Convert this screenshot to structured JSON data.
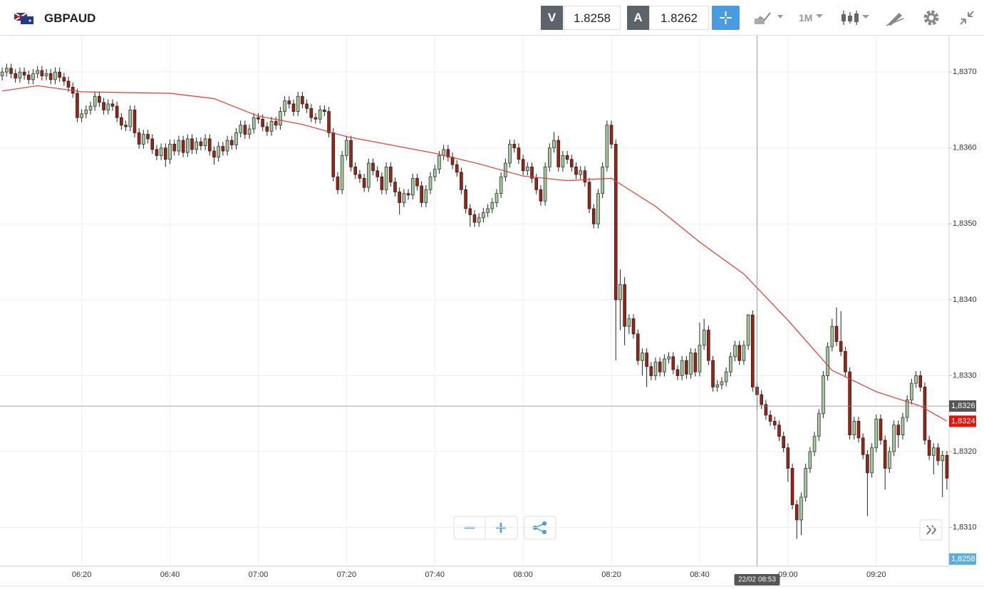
{
  "header": {
    "symbol": "GBPAUD",
    "bid_label": "V",
    "bid": "1.8258",
    "ask_label": "A",
    "ask": "1.8262",
    "timeframe": "1M"
  },
  "chart_data": {
    "type": "candlestick",
    "x": [
      "06:02",
      "06:03",
      "06:04",
      "06:05",
      "06:06",
      "06:07",
      "06:08",
      "06:09",
      "06:10",
      "06:11",
      "06:12",
      "06:13",
      "06:14",
      "06:15",
      "06:16",
      "06:17",
      "06:18",
      "06:19",
      "06:20",
      "06:21",
      "06:22",
      "06:23",
      "06:24",
      "06:25",
      "06:26",
      "06:27",
      "06:28",
      "06:29",
      "06:30",
      "06:31",
      "06:32",
      "06:33",
      "06:34",
      "06:35",
      "06:36",
      "06:37",
      "06:38",
      "06:39",
      "06:40",
      "06:41",
      "06:42",
      "06:43",
      "06:44",
      "06:45",
      "06:46",
      "06:47",
      "06:48",
      "06:49",
      "06:50",
      "06:51",
      "06:52",
      "06:53",
      "06:54",
      "06:55",
      "06:56",
      "06:57",
      "06:58",
      "06:59",
      "07:00",
      "07:01",
      "07:02",
      "07:03",
      "07:04",
      "07:05",
      "07:06",
      "07:07",
      "07:08",
      "07:09",
      "07:10",
      "07:11",
      "07:12",
      "07:13",
      "07:14",
      "07:15",
      "07:16",
      "07:17",
      "07:18",
      "07:19",
      "07:20",
      "07:21",
      "07:22",
      "07:23",
      "07:24",
      "07:25",
      "07:26",
      "07:27",
      "07:28",
      "07:29",
      "07:30",
      "07:31",
      "07:32",
      "07:33",
      "07:34",
      "07:35",
      "07:36",
      "07:37",
      "07:38",
      "07:39",
      "07:40",
      "07:41",
      "07:42",
      "07:43",
      "07:44",
      "07:45",
      "07:46",
      "07:47",
      "07:48",
      "07:49",
      "07:50",
      "07:51",
      "07:52",
      "07:53",
      "07:54",
      "07:55",
      "07:56",
      "07:57",
      "07:58",
      "07:59",
      "08:00",
      "08:01",
      "08:02",
      "08:03",
      "08:04",
      "08:05",
      "08:06",
      "08:07",
      "08:08",
      "08:09",
      "08:10",
      "08:11",
      "08:12",
      "08:13",
      "08:14",
      "08:15",
      "08:16",
      "08:17",
      "08:18",
      "08:19",
      "08:20",
      "08:21",
      "08:22",
      "08:23",
      "08:24",
      "08:25",
      "08:26",
      "08:27",
      "08:28",
      "08:29",
      "08:30",
      "08:31",
      "08:32",
      "08:33",
      "08:34",
      "08:35",
      "08:36",
      "08:37",
      "08:38",
      "08:39",
      "08:40",
      "08:41",
      "08:42",
      "08:43",
      "08:44",
      "08:45",
      "08:46",
      "08:47",
      "08:48",
      "08:49",
      "08:50",
      "08:51",
      "08:52",
      "08:53",
      "08:54",
      "08:55",
      "08:56",
      "08:57",
      "08:58",
      "08:59",
      "09:00",
      "09:01",
      "09:02",
      "09:03",
      "09:04",
      "09:05",
      "09:06",
      "09:07",
      "09:08",
      "09:09",
      "09:10",
      "09:11",
      "09:12",
      "09:13",
      "09:14",
      "09:15",
      "09:16",
      "09:17",
      "09:18",
      "09:19",
      "09:20",
      "09:21",
      "09:22",
      "09:23",
      "09:24",
      "09:25",
      "09:26",
      "09:27",
      "09:28",
      "09:29",
      "09:30",
      "09:31",
      "09:32",
      "09:33",
      "09:34",
      "09:35",
      "09:36"
    ],
    "open": [
      1.83695,
      1.837,
      1.83705,
      1.83698,
      1.83692,
      1.837,
      1.83696,
      1.8369,
      1.83698,
      1.83702,
      1.83695,
      1.83698,
      1.8369,
      1.837,
      1.83693,
      1.83688,
      1.8368,
      1.83672,
      1.8364,
      1.83645,
      1.8365,
      1.83655,
      1.83668,
      1.8366,
      1.8365,
      1.83658,
      1.83655,
      1.8364,
      1.8363,
      1.83628,
      1.8365,
      1.8362,
      1.83605,
      1.83618,
      1.83612,
      1.83598,
      1.8359,
      1.836,
      1.83585,
      1.83605,
      1.83596,
      1.8361,
      1.83594,
      1.83612,
      1.83598,
      1.83608,
      1.83603,
      1.83612,
      1.83596,
      1.83588,
      1.83602,
      1.83596,
      1.8361,
      1.83604,
      1.8362,
      1.8363,
      1.83618,
      1.83625,
      1.8364,
      1.83638,
      1.83628,
      1.83622,
      1.83635,
      1.8363,
      1.83648,
      1.83662,
      1.83658,
      1.83648,
      1.83668,
      1.83658,
      1.83652,
      1.8364,
      1.83638,
      1.8365,
      1.83648,
      1.8362,
      1.83562,
      1.83545,
      1.8359,
      1.8361,
      1.83575,
      1.83565,
      1.8356,
      1.83548,
      1.8358,
      1.8357,
      1.83562,
      1.83545,
      1.83575,
      1.83555,
      1.83542,
      1.83528,
      1.8354,
      1.83538,
      1.8356,
      1.8355,
      1.83528,
      1.83545,
      1.83562,
      1.83572,
      1.8359,
      1.83598,
      1.83588,
      1.83578,
      1.83568,
      1.83545,
      1.8352,
      1.83512,
      1.83502,
      1.83508,
      1.83515,
      1.8352,
      1.83528,
      1.8354,
      1.83562,
      1.8358,
      1.83605,
      1.836,
      1.83585,
      1.8357,
      1.83575,
      1.8356,
      1.83545,
      1.8353,
      1.83575,
      1.836,
      1.8361,
      1.83575,
      1.8359,
      1.83585,
      1.83575,
      1.83565,
      1.8357,
      1.83555,
      1.8352,
      1.835,
      1.8354,
      1.83575,
      1.8363,
      1.83605,
      1.834,
      1.8342,
      1.83365,
      1.83375,
      1.83355,
      1.8332,
      1.8333,
      1.83312,
      1.833,
      1.83318,
      1.83305,
      1.83322,
      1.83325,
      1.83308,
      1.833,
      1.8332,
      1.83302,
      1.8333,
      1.83305,
      1.8334,
      1.8336,
      1.8332,
      1.83285,
      1.83288,
      1.83292,
      1.83305,
      1.83325,
      1.8334,
      1.8332,
      1.8334,
      1.8338,
      1.83285,
      1.83275,
      1.83262,
      1.83248,
      1.8324,
      1.83235,
      1.8322,
      1.83205,
      1.83178,
      1.8313,
      1.8311,
      1.8314,
      1.83178,
      1.832,
      1.8322,
      1.8325,
      1.833,
      1.83338,
      1.83365,
      1.83345,
      1.83332,
      1.83305,
      1.83222,
      1.8324,
      1.83218,
      1.83196,
      1.83172,
      1.83205,
      1.83243,
      1.83215,
      1.83178,
      1.832,
      1.83235,
      1.83222,
      1.83245,
      1.83268,
      1.8329,
      1.833,
      1.83285,
      1.83215,
      1.83195,
      1.83205,
      1.83188,
      1.83195
    ],
    "high": [
      1.83706,
      1.83711,
      1.83711,
      1.83704,
      1.83706,
      1.83706,
      1.83702,
      1.83704,
      1.83708,
      1.83708,
      1.83704,
      1.83704,
      1.83706,
      1.83706,
      1.83699,
      1.83694,
      1.83686,
      1.83678,
      1.83651,
      1.83656,
      1.83661,
      1.83674,
      1.83674,
      1.83666,
      1.83664,
      1.83664,
      1.83661,
      1.83646,
      1.83636,
      1.83656,
      1.83656,
      1.83626,
      1.83624,
      1.83624,
      1.83618,
      1.83604,
      1.83606,
      1.83606,
      1.83611,
      1.83611,
      1.83616,
      1.83616,
      1.83618,
      1.83618,
      1.83614,
      1.83614,
      1.83618,
      1.83618,
      1.83602,
      1.83608,
      1.83608,
      1.83616,
      1.83616,
      1.83626,
      1.83636,
      1.83636,
      1.83631,
      1.83646,
      1.83646,
      1.83644,
      1.83634,
      1.83641,
      1.83641,
      1.83654,
      1.83668,
      1.83668,
      1.83664,
      1.83674,
      1.83674,
      1.83664,
      1.83658,
      1.83646,
      1.83656,
      1.83656,
      1.83654,
      1.83626,
      1.83568,
      1.83596,
      1.83616,
      1.83616,
      1.83581,
      1.83571,
      1.83566,
      1.83586,
      1.83586,
      1.83576,
      1.83568,
      1.83581,
      1.83581,
      1.83561,
      1.83548,
      1.83546,
      1.83546,
      1.83566,
      1.83566,
      1.83556,
      1.83551,
      1.83568,
      1.83578,
      1.83596,
      1.83604,
      1.83604,
      1.83594,
      1.83584,
      1.83574,
      1.83551,
      1.83526,
      1.83518,
      1.83514,
      1.83521,
      1.83526,
      1.83534,
      1.83546,
      1.83568,
      1.83586,
      1.83611,
      1.83611,
      1.83606,
      1.83591,
      1.83581,
      1.83581,
      1.83566,
      1.83551,
      1.83581,
      1.83606,
      1.83621,
      1.83616,
      1.83596,
      1.83596,
      1.83591,
      1.83581,
      1.83576,
      1.83576,
      1.83561,
      1.83526,
      1.83546,
      1.83581,
      1.83636,
      1.83636,
      1.83611,
      1.8344,
      1.8343,
      1.83381,
      1.83381,
      1.83361,
      1.83336,
      1.83336,
      1.83318,
      1.83324,
      1.83324,
      1.83328,
      1.83331,
      1.83331,
      1.83314,
      1.83326,
      1.83326,
      1.83336,
      1.83336,
      1.8337,
      1.83375,
      1.83366,
      1.83326,
      1.83294,
      1.83298,
      1.83311,
      1.83331,
      1.83346,
      1.83346,
      1.83346,
      1.83381,
      1.83386,
      1.83291,
      1.83281,
      1.83268,
      1.83254,
      1.83246,
      1.83241,
      1.83226,
      1.83211,
      1.83184,
      1.83136,
      1.83146,
      1.83184,
      1.83206,
      1.83226,
      1.83256,
      1.83306,
      1.83344,
      1.83375,
      1.8339,
      1.83385,
      1.83338,
      1.83311,
      1.83246,
      1.83246,
      1.83224,
      1.83202,
      1.83211,
      1.83249,
      1.83249,
      1.83221,
      1.83206,
      1.83241,
      1.83241,
      1.83251,
      1.83274,
      1.83296,
      1.83306,
      1.83306,
      1.83291,
      1.83221,
      1.83211,
      1.83211,
      1.83201,
      1.83201
    ],
    "low": [
      1.83689,
      1.83694,
      1.83692,
      1.83686,
      1.83686,
      1.8369,
      1.83684,
      1.83684,
      1.83692,
      1.83689,
      1.83689,
      1.83684,
      1.83684,
      1.83687,
      1.83682,
      1.83674,
      1.83666,
      1.83634,
      1.83634,
      1.83639,
      1.83644,
      1.83649,
      1.83654,
      1.83644,
      1.83644,
      1.83649,
      1.83634,
      1.83624,
      1.83622,
      1.83622,
      1.83614,
      1.83599,
      1.83599,
      1.83606,
      1.83592,
      1.83584,
      1.83584,
      1.83575,
      1.83579,
      1.8359,
      1.8359,
      1.83588,
      1.83588,
      1.83592,
      1.83592,
      1.83597,
      1.83597,
      1.8359,
      1.83578,
      1.83582,
      1.8359,
      1.8359,
      1.83598,
      1.83598,
      1.83614,
      1.83612,
      1.83612,
      1.83619,
      1.83632,
      1.83622,
      1.83616,
      1.83616,
      1.83624,
      1.83624,
      1.83642,
      1.83652,
      1.83642,
      1.83642,
      1.83652,
      1.83646,
      1.83634,
      1.83632,
      1.83632,
      1.83642,
      1.83614,
      1.83556,
      1.83539,
      1.83539,
      1.83584,
      1.83569,
      1.83559,
      1.83554,
      1.83542,
      1.83542,
      1.83564,
      1.83556,
      1.83539,
      1.83539,
      1.83549,
      1.83536,
      1.83512,
      1.83522,
      1.83532,
      1.83532,
      1.83544,
      1.83522,
      1.83522,
      1.83539,
      1.83556,
      1.83566,
      1.83584,
      1.83582,
      1.83572,
      1.83562,
      1.83539,
      1.83514,
      1.83496,
      1.83496,
      1.83496,
      1.83502,
      1.83509,
      1.83514,
      1.83522,
      1.83534,
      1.83556,
      1.83574,
      1.83594,
      1.83579,
      1.83564,
      1.83564,
      1.83554,
      1.83539,
      1.83524,
      1.83524,
      1.83569,
      1.83594,
      1.83569,
      1.83569,
      1.83579,
      1.83569,
      1.83559,
      1.83559,
      1.83549,
      1.83514,
      1.83494,
      1.83494,
      1.83534,
      1.83569,
      1.83599,
      1.8332,
      1.8336,
      1.8334,
      1.83355,
      1.83349,
      1.83314,
      1.833,
      1.83285,
      1.83294,
      1.83294,
      1.83299,
      1.83299,
      1.83316,
      1.83302,
      1.83294,
      1.83294,
      1.83296,
      1.83296,
      1.83299,
      1.83299,
      1.83334,
      1.83314,
      1.83279,
      1.83279,
      1.83282,
      1.83286,
      1.83299,
      1.83319,
      1.83314,
      1.83314,
      1.83334,
      1.83279,
      1.83255,
      1.83256,
      1.83242,
      1.83234,
      1.83229,
      1.83214,
      1.83199,
      1.8316,
      1.83124,
      1.83085,
      1.8309,
      1.83134,
      1.83172,
      1.83194,
      1.83214,
      1.83244,
      1.83294,
      1.83332,
      1.83339,
      1.83326,
      1.83299,
      1.83216,
      1.83216,
      1.83212,
      1.8319,
      1.83115,
      1.83166,
      1.83199,
      1.83209,
      1.8315,
      1.83172,
      1.83194,
      1.83205,
      1.83216,
      1.83239,
      1.83262,
      1.83284,
      1.83279,
      1.83209,
      1.83189,
      1.8317,
      1.83182,
      1.8314,
      1.8315
    ],
    "close": [
      1.837,
      1.83705,
      1.83698,
      1.83692,
      1.837,
      1.83696,
      1.8369,
      1.83698,
      1.83702,
      1.83695,
      1.83698,
      1.8369,
      1.837,
      1.83693,
      1.83688,
      1.8368,
      1.83672,
      1.8364,
      1.83645,
      1.8365,
      1.83655,
      1.83668,
      1.8366,
      1.8365,
      1.83658,
      1.83655,
      1.8364,
      1.8363,
      1.83628,
      1.8365,
      1.8362,
      1.83605,
      1.83618,
      1.83612,
      1.83598,
      1.8359,
      1.836,
      1.83585,
      1.83605,
      1.83596,
      1.8361,
      1.83594,
      1.83612,
      1.83598,
      1.83608,
      1.83603,
      1.83612,
      1.83596,
      1.83588,
      1.83602,
      1.83596,
      1.8361,
      1.83604,
      1.8362,
      1.8363,
      1.83618,
      1.83625,
      1.8364,
      1.83638,
      1.83628,
      1.83622,
      1.83635,
      1.8363,
      1.83648,
      1.83662,
      1.83658,
      1.83648,
      1.83668,
      1.83658,
      1.83652,
      1.8364,
      1.83638,
      1.8365,
      1.83648,
      1.8362,
      1.83562,
      1.83545,
      1.8359,
      1.8361,
      1.83575,
      1.83565,
      1.8356,
      1.83548,
      1.8358,
      1.8357,
      1.83562,
      1.83545,
      1.83575,
      1.83555,
      1.83542,
      1.83528,
      1.8354,
      1.83538,
      1.8356,
      1.8355,
      1.83528,
      1.83545,
      1.83562,
      1.83572,
      1.8359,
      1.83598,
      1.83588,
      1.83578,
      1.83568,
      1.83545,
      1.8352,
      1.83512,
      1.83502,
      1.83508,
      1.83515,
      1.8352,
      1.83528,
      1.8354,
      1.83562,
      1.8358,
      1.83605,
      1.836,
      1.83585,
      1.8357,
      1.83575,
      1.8356,
      1.83545,
      1.8353,
      1.83575,
      1.836,
      1.8361,
      1.83575,
      1.8359,
      1.83585,
      1.83575,
      1.83565,
      1.8357,
      1.83555,
      1.8352,
      1.835,
      1.8354,
      1.83575,
      1.8363,
      1.83605,
      1.834,
      1.8342,
      1.83365,
      1.83375,
      1.83355,
      1.8332,
      1.8333,
      1.83312,
      1.833,
      1.83318,
      1.83305,
      1.83322,
      1.83325,
      1.83308,
      1.833,
      1.8332,
      1.83302,
      1.8333,
      1.83305,
      1.8334,
      1.8336,
      1.8332,
      1.83285,
      1.83288,
      1.83292,
      1.83305,
      1.83325,
      1.8334,
      1.8332,
      1.8334,
      1.8338,
      1.83285,
      1.83275,
      1.83262,
      1.83248,
      1.8324,
      1.83235,
      1.8322,
      1.83205,
      1.83178,
      1.8313,
      1.8311,
      1.8314,
      1.83178,
      1.832,
      1.8322,
      1.8325,
      1.833,
      1.83338,
      1.83365,
      1.83345,
      1.83332,
      1.83305,
      1.83222,
      1.8324,
      1.83218,
      1.83196,
      1.83172,
      1.83205,
      1.83243,
      1.83215,
      1.83178,
      1.832,
      1.83235,
      1.83222,
      1.83245,
      1.83268,
      1.8329,
      1.833,
      1.83285,
      1.83215,
      1.83195,
      1.83205,
      1.83188,
      1.83195,
      1.83165
    ],
    "up_color": "#a3cc9e",
    "down_color": "#8b2a1e",
    "moving_average": {
      "color": "#e03c31",
      "x": [
        "06:02",
        "06:10",
        "06:20",
        "06:40",
        "06:50",
        "07:00",
        "07:10",
        "07:20",
        "07:40",
        "07:50",
        "08:00",
        "08:10",
        "08:20",
        "08:30",
        "08:40",
        "08:50",
        "09:00",
        "09:10",
        "09:20",
        "09:30",
        "09:36"
      ],
      "values": [
        1.83675,
        1.83682,
        1.83674,
        1.83672,
        1.83665,
        1.83642,
        1.83631,
        1.83615,
        1.83593,
        1.83579,
        1.83563,
        1.83557,
        1.8356,
        1.83523,
        1.83476,
        1.83434,
        1.83373,
        1.83307,
        1.83279,
        1.8326,
        1.8324
      ]
    },
    "ma_label": {
      "value": 1.8324,
      "label": "1,8324"
    },
    "crosshair": {
      "x_label": "22/02 08:53",
      "y": {
        "value": 1.8326,
        "label": "1,8326"
      }
    },
    "bid_badge": "1,8258",
    "ylim": [
      1.83049,
      1.83748
    ],
    "yticks": [
      {
        "value": 1.831,
        "label": "1,8310"
      },
      {
        "value": 1.832,
        "label": "1,8320"
      },
      {
        "value": 1.833,
        "label": "1,8330"
      },
      {
        "value": 1.834,
        "label": "1,8340"
      },
      {
        "value": 1.835,
        "label": "1,8350"
      },
      {
        "value": 1.836,
        "label": "1,8360"
      },
      {
        "value": 1.837,
        "label": "1,8370"
      }
    ],
    "xticks": [
      "06:20",
      "06:40",
      "07:00",
      "07:20",
      "07:40",
      "08:00",
      "08:20",
      "08:40",
      "09:00",
      "09:20"
    ],
    "grid": true
  }
}
